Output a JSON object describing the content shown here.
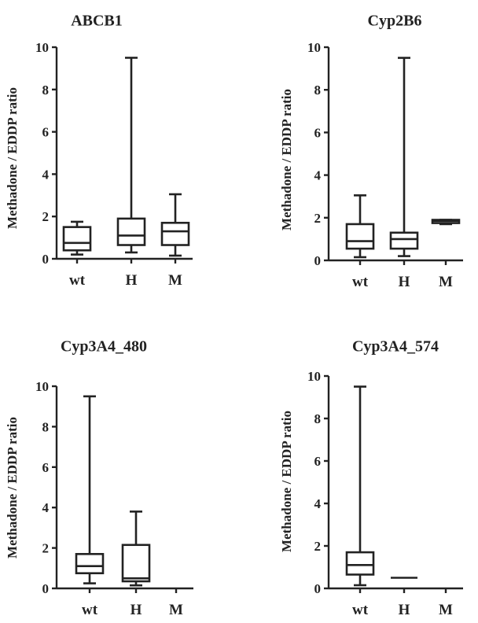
{
  "chart_data": [
    {
      "type": "box",
      "title": "ABCB1",
      "ylabel": "Methadone / EDDP ratio",
      "ylim": [
        0,
        10
      ],
      "yticks": [
        0,
        2,
        4,
        6,
        8,
        10
      ],
      "categories": [
        "wt",
        "H",
        "M"
      ],
      "boxes": [
        {
          "category": "wt",
          "min": 0.2,
          "q1": 0.4,
          "median": 0.75,
          "q3": 1.5,
          "max": 1.75
        },
        {
          "category": "H",
          "min": 0.3,
          "q1": 0.65,
          "median": 1.1,
          "q3": 1.9,
          "max": 9.5
        },
        {
          "category": "M",
          "min": 0.15,
          "q1": 0.65,
          "median": 1.3,
          "q3": 1.7,
          "max": 3.05
        }
      ]
    },
    {
      "type": "box",
      "title": "Cyp2B6",
      "ylabel": "Methadone / EDDP ratio",
      "ylim": [
        0,
        10
      ],
      "yticks": [
        0,
        2,
        4,
        6,
        8,
        10
      ],
      "categories": [
        "wt",
        "H",
        "M"
      ],
      "boxes": [
        {
          "category": "wt",
          "min": 0.15,
          "q1": 0.55,
          "median": 0.9,
          "q3": 1.7,
          "max": 3.05
        },
        {
          "category": "H",
          "min": 0.2,
          "q1": 0.55,
          "median": 1.0,
          "q3": 1.3,
          "max": 9.5
        },
        {
          "category": "M",
          "min": 1.7,
          "q1": 1.75,
          "median": 1.85,
          "q3": 1.9,
          "max": 1.9
        }
      ]
    },
    {
      "type": "box",
      "title": "Cyp3A4_480",
      "ylabel": "Methadone / EDDP ratio",
      "ylim": [
        0,
        10
      ],
      "yticks": [
        0,
        2,
        4,
        6,
        8,
        10
      ],
      "categories": [
        "wt",
        "H",
        "M"
      ],
      "boxes": [
        {
          "category": "wt",
          "min": 0.25,
          "q1": 0.75,
          "median": 1.1,
          "q3": 1.7,
          "max": 9.5
        },
        {
          "category": "H",
          "min": 0.15,
          "q1": 0.35,
          "median": 0.5,
          "q3": 2.15,
          "max": 3.8
        }
      ]
    },
    {
      "type": "box",
      "title": "Cyp3A4_574",
      "ylabel": "Methadone / EDDP ratio",
      "ylim": [
        0,
        10
      ],
      "yticks": [
        0,
        2,
        4,
        6,
        8,
        10
      ],
      "categories": [
        "wt",
        "H",
        "M"
      ],
      "boxes": [
        {
          "category": "wt",
          "min": 0.15,
          "q1": 0.65,
          "median": 1.1,
          "q3": 1.7,
          "max": 9.5
        },
        {
          "category": "H",
          "min": 0.5,
          "q1": 0.5,
          "median": 0.5,
          "q3": 0.5,
          "max": 0.5
        }
      ]
    }
  ]
}
